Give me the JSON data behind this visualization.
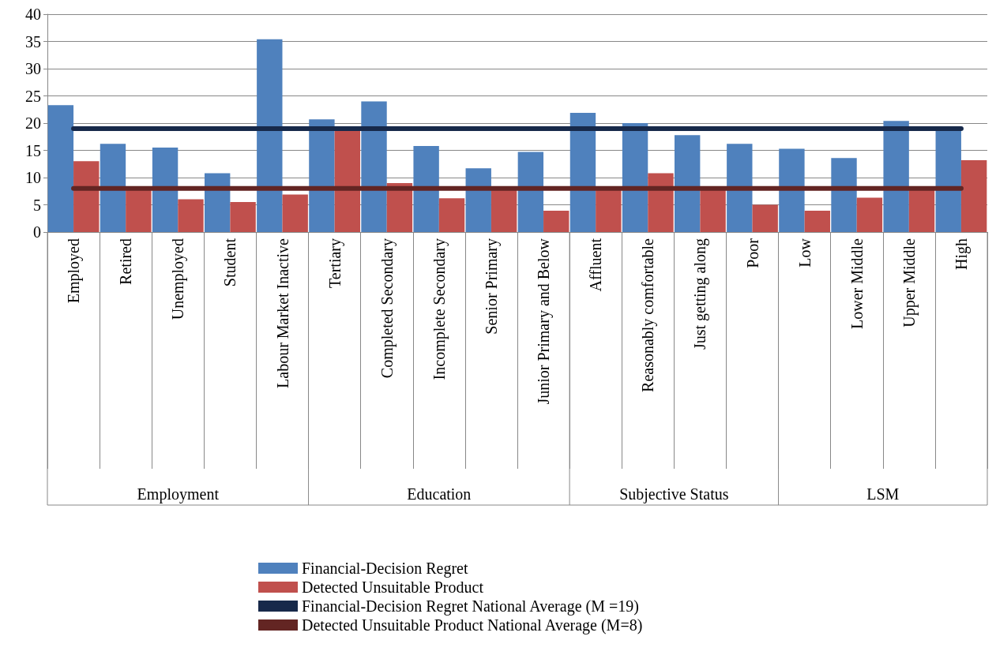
{
  "chart_data": {
    "type": "bar",
    "categories": [
      "Employed",
      "Retired",
      "Unemployed",
      "Student",
      "Labour Market Inactive",
      "Tertiary",
      "Completed Secondary",
      "Incomplete Secondary",
      "Senior Primary",
      "Junior Primary and Below",
      "Affluent",
      "Reasonably comfortable",
      "Just getting along",
      "Poor",
      "Low",
      "Lower Middle",
      "Upper Middle",
      "High"
    ],
    "series": [
      {
        "name": "Financial-Decision Regret",
        "color": "#4f81bd",
        "values": [
          23.3,
          16.2,
          15.5,
          10.8,
          35.4,
          20.7,
          24.0,
          15.8,
          11.7,
          14.7,
          21.9,
          20.0,
          17.8,
          16.2,
          15.3,
          13.6,
          20.4,
          18.8
        ]
      },
      {
        "name": "Detected Unsuitable Product",
        "color": "#c0504d",
        "values": [
          13.0,
          8,
          6.0,
          5.5,
          6.9,
          18.8,
          9.0,
          6.2,
          8,
          3.9,
          8,
          10.8,
          8,
          5.0,
          3.9,
          6.3,
          8,
          13.2
        ]
      },
      {
        "name": "Financial-Decision Regret National Average (M =19)",
        "type": "line",
        "color": "#17294a",
        "values": [
          19,
          19,
          19,
          19,
          19,
          19,
          19,
          19,
          19,
          19,
          19,
          19,
          19,
          19,
          19,
          19,
          19,
          19
        ]
      },
      {
        "name": "Detected Unsuitable Product National Average (M=8)",
        "type": "line",
        "color": "#632523",
        "values": [
          8,
          8,
          8,
          8,
          8,
          8,
          8,
          8,
          8,
          8,
          8,
          8,
          8,
          8,
          8,
          8,
          8,
          8
        ]
      }
    ],
    "annotations": [
      "Employment",
      "Education",
      "Subjective Status",
      "LSM"
    ],
    "ylim": [
      0,
      40
    ],
    "yticks": [
      0,
      5,
      10,
      15,
      20,
      25,
      30,
      35,
      40
    ],
    "grid": "y",
    "legend": "bottom",
    "marker": "none",
    "line_style": "solid"
  }
}
